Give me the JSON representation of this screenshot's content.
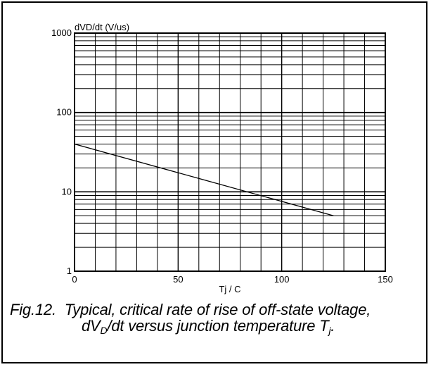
{
  "chart_data": {
    "type": "line",
    "xlabel": "Tj / C",
    "ylabel": "dVD/dt (V/us)",
    "xlim": [
      0,
      150
    ],
    "ylim": [
      1,
      1000
    ],
    "y_scale": "log",
    "grid": true,
    "x_ticks": [
      "0",
      "50",
      "100",
      "150"
    ],
    "y_ticks": [
      "1",
      "10",
      "100",
      "1000"
    ],
    "series": [
      {
        "x": [
          0,
          125
        ],
        "y": [
          40,
          5
        ]
      }
    ]
  },
  "caption": {
    "figure_label": "Fig.12.",
    "line1": "Typical, critical rate of rise of off-state voltage,",
    "line2_pre": "dV",
    "line2_sub": "D",
    "line2_mid": "/dt versus junction temperature T",
    "line2_sub2": "j",
    "line2_end": "."
  }
}
